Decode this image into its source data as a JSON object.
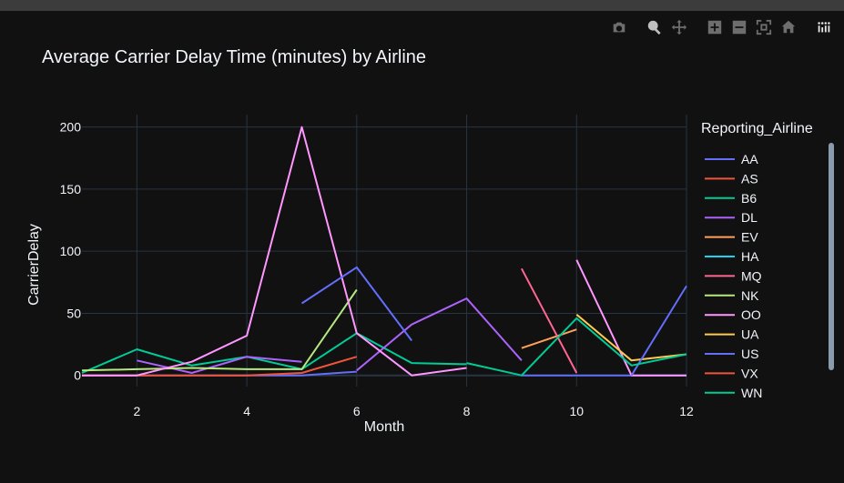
{
  "modebar": {
    "buttons": [
      "camera-icon",
      "zoom-icon",
      "pan-icon",
      "zoom-in-icon",
      "zoom-out-icon",
      "autoscale-icon",
      "reset-axes-icon",
      "plotly-logo-icon"
    ]
  },
  "chart_data": {
    "type": "line",
    "title": "Average Carrier Delay Time (minutes) by Airline",
    "xlabel": "Month",
    "ylabel": "CarrierDelay",
    "xlim": [
      1,
      12
    ],
    "ylim": [
      -9,
      210
    ],
    "xticks": [
      2,
      4,
      6,
      8,
      10,
      12
    ],
    "yticks": [
      0,
      50,
      100,
      150,
      200
    ],
    "grid": true,
    "legend_title": "Reporting_Airline",
    "legend_position": "right",
    "series": [
      {
        "name": "AA",
        "color": "#636efa",
        "x": [
          1,
          2,
          3,
          4,
          5,
          6,
          7,
          8,
          9,
          10,
          11,
          12
        ],
        "y": [
          0,
          0,
          0,
          0,
          0,
          3,
          null,
          null,
          0,
          0,
          0,
          0
        ]
      },
      {
        "name": "AS",
        "color": "#ef553b",
        "x": [
          1,
          2,
          3,
          4,
          5,
          6
        ],
        "y": [
          0,
          0,
          0,
          0,
          2,
          15
        ]
      },
      {
        "name": "B6",
        "color": "#00cc96",
        "x": [
          1,
          2,
          3,
          4,
          5,
          6,
          7,
          8
        ],
        "y": [
          2,
          21,
          8,
          15,
          5,
          34,
          10,
          9
        ]
      },
      {
        "name": "DL",
        "color": "#ab63fa",
        "x": [
          2,
          3,
          4,
          5,
          null,
          6,
          7,
          8,
          9
        ],
        "y": [
          12,
          2,
          15,
          11,
          null,
          4,
          41,
          62,
          12
        ]
      },
      {
        "name": "EV",
        "color": "#ffa15a",
        "x": [
          9,
          10
        ],
        "y": [
          22,
          37
        ]
      },
      {
        "name": "HA",
        "color": "#19d3f3",
        "x": [],
        "y": []
      },
      {
        "name": "MQ",
        "color": "#ff6692",
        "x": [
          9,
          10
        ],
        "y": [
          86,
          2
        ]
      },
      {
        "name": "NK",
        "color": "#b6e880",
        "x": [
          1,
          2,
          3,
          4,
          5,
          6
        ],
        "y": [
          4,
          5,
          6,
          5,
          5,
          69
        ]
      },
      {
        "name": "OO",
        "color": "#ff97ff",
        "x": [
          1,
          2,
          3,
          4,
          5,
          6,
          7,
          8,
          null,
          10,
          11,
          12
        ],
        "y": [
          0,
          0,
          11,
          32,
          200,
          34,
          0,
          6,
          null,
          93,
          0,
          0
        ]
      },
      {
        "name": "UA",
        "color": "#fecb52",
        "x": [
          10,
          11,
          12
        ],
        "y": [
          49,
          12,
          17
        ]
      },
      {
        "name": "US",
        "color": "#636efa",
        "x": [
          5,
          6,
          7,
          null,
          11,
          12
        ],
        "y": [
          58,
          87,
          28,
          null,
          0,
          72
        ]
      },
      {
        "name": "VX",
        "color": "#ef553b",
        "x": [],
        "y": []
      },
      {
        "name": "WN",
        "color": "#00cc96",
        "x": [
          8,
          9,
          10,
          11,
          12
        ],
        "y": [
          10,
          0,
          46,
          8,
          17
        ]
      }
    ]
  }
}
